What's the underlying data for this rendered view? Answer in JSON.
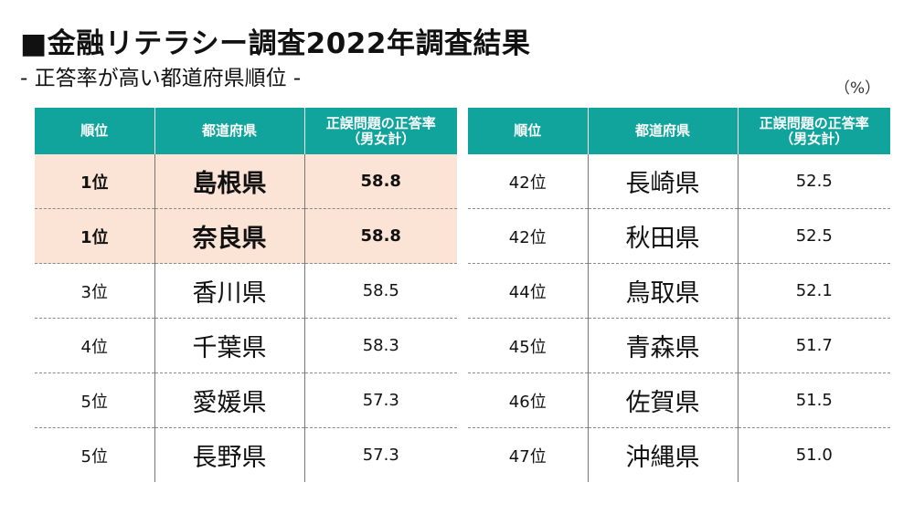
{
  "title": "■金融リテラシー調査2022年調査結果",
  "subtitle": "- 正答率が高い都道府県順位 -",
  "unit": "（%）",
  "headers": {
    "rank": "順位",
    "prefecture": "都道府県",
    "rate_line1": "正誤問題の正答率",
    "rate_line2": "（男女計）"
  },
  "top_rows": [
    {
      "rank": "1位",
      "prefecture": "島根県",
      "value": "58.8",
      "highlight": true
    },
    {
      "rank": "1位",
      "prefecture": "奈良県",
      "value": "58.8",
      "highlight": true
    },
    {
      "rank": "3位",
      "prefecture": "香川県",
      "value": "58.5"
    },
    {
      "rank": "4位",
      "prefecture": "千葉県",
      "value": "58.3"
    },
    {
      "rank": "5位",
      "prefecture": "愛媛県",
      "value": "57.3"
    },
    {
      "rank": "5位",
      "prefecture": "長野県",
      "value": "57.3"
    }
  ],
  "bottom_rows": [
    {
      "rank": "42位",
      "prefecture": "長崎県",
      "value": "52.5"
    },
    {
      "rank": "42位",
      "prefecture": "秋田県",
      "value": "52.5"
    },
    {
      "rank": "44位",
      "prefecture": "鳥取県",
      "value": "52.1"
    },
    {
      "rank": "45位",
      "prefecture": "青森県",
      "value": "51.7"
    },
    {
      "rank": "46位",
      "prefecture": "佐賀県",
      "value": "51.5"
    },
    {
      "rank": "47位",
      "prefecture": "沖縄県",
      "value": "51.0"
    }
  ],
  "colors": {
    "header_bg": "#10a49d",
    "highlight_bg": "#fbe4d6"
  }
}
